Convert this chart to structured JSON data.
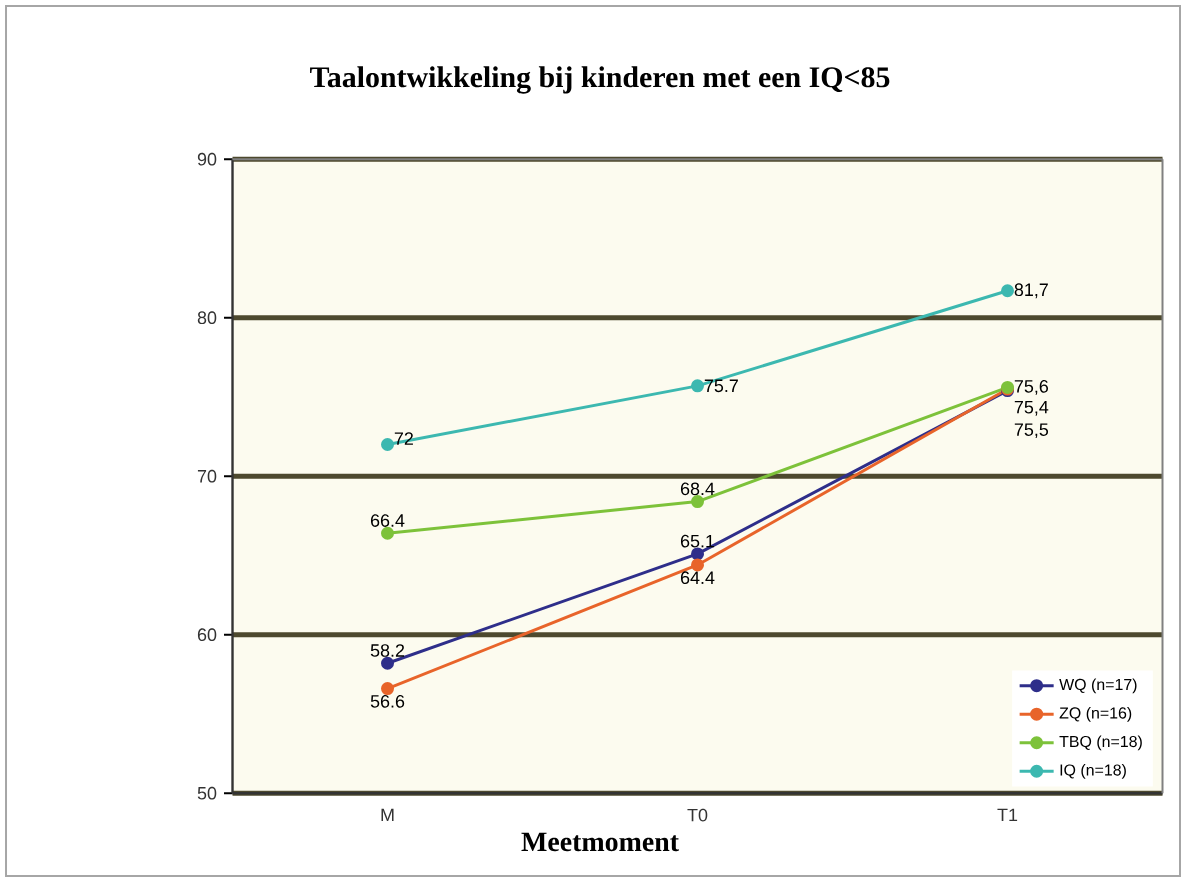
{
  "chart_data": {
    "type": "line",
    "title": "Taalontwikkeling bij kinderen met een IQ<85",
    "xlabel": "Meetmoment",
    "categories": [
      "M",
      "T0",
      "T1"
    ],
    "ylim": [
      50,
      90
    ],
    "yticks": [
      50,
      60,
      70,
      80,
      90
    ],
    "grid": "y",
    "legend": "bottom right",
    "marker": "circle",
    "line_style": "solid",
    "series": [
      {
        "name": "WQ (n=17)",
        "color": "#2e2e8a",
        "values": [
          58.2,
          65.1,
          75.4
        ],
        "value_labels": [
          "58.2",
          "65.1",
          "75,4"
        ]
      },
      {
        "name": "ZQ (n=16)",
        "color": "#e8642a",
        "values": [
          56.6,
          64.4,
          75.5
        ],
        "value_labels": [
          "56.6",
          "64.4",
          "75,5"
        ]
      },
      {
        "name": "TBQ (n=18)",
        "color": "#7dc23a",
        "values": [
          66.4,
          68.4,
          75.6
        ],
        "value_labels": [
          "66.4",
          "68.4",
          "75,6"
        ]
      },
      {
        "name": "IQ (n=18)",
        "color": "#3cb8b0",
        "values": [
          72,
          75.7,
          81.7
        ],
        "value_labels": [
          "72",
          "75.7",
          "81,7"
        ]
      }
    ]
  }
}
